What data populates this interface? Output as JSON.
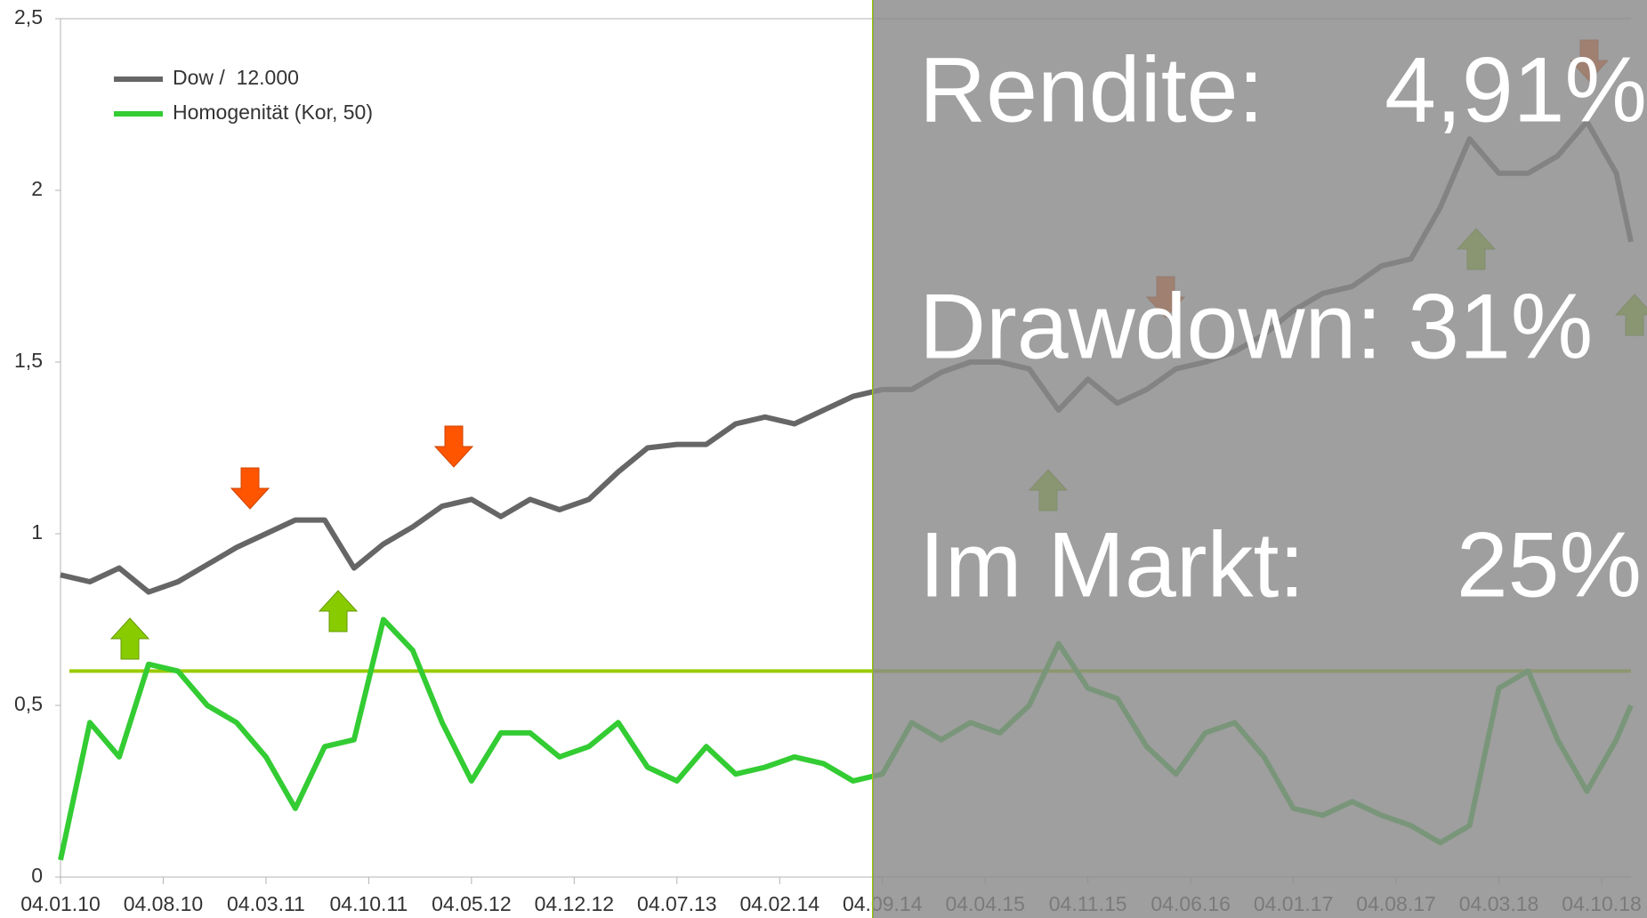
{
  "chart_data": {
    "type": "line",
    "x": [
      "04.01.10",
      "04.03.10",
      "04.05.10",
      "04.07.10",
      "04.09.10",
      "04.11.10",
      "04.01.11",
      "04.03.11",
      "04.05.11",
      "04.07.11",
      "04.09.11",
      "04.11.11",
      "04.01.12",
      "04.03.12",
      "04.05.12",
      "04.07.12",
      "04.09.12",
      "04.11.12",
      "04.01.13",
      "04.03.13",
      "04.05.13",
      "04.07.13",
      "04.09.13",
      "04.11.13",
      "04.01.14",
      "04.03.14",
      "04.05.14",
      "04.07.14",
      "04.09.14",
      "04.11.14",
      "04.01.15",
      "04.03.15",
      "04.05.15",
      "04.07.15",
      "04.09.15",
      "04.11.15",
      "04.01.16",
      "04.03.16",
      "04.05.16",
      "04.07.16",
      "04.09.16",
      "04.11.16",
      "04.01.17",
      "04.03.17",
      "04.05.17",
      "04.07.17",
      "04.09.17",
      "04.11.17",
      "04.01.18",
      "04.03.18",
      "04.05.18",
      "04.07.18",
      "04.09.18",
      "04.11.18",
      "04.12.18"
    ],
    "series": [
      {
        "name": "Dow /  12.000",
        "color": "#666666",
        "values": [
          0.88,
          0.86,
          0.9,
          0.83,
          0.86,
          0.91,
          0.96,
          1.0,
          1.04,
          1.04,
          0.9,
          0.97,
          1.02,
          1.08,
          1.1,
          1.05,
          1.1,
          1.07,
          1.1,
          1.18,
          1.25,
          1.26,
          1.26,
          1.32,
          1.34,
          1.32,
          1.36,
          1.4,
          1.42,
          1.42,
          1.47,
          1.5,
          1.5,
          1.48,
          1.36,
          1.45,
          1.38,
          1.42,
          1.48,
          1.5,
          1.53,
          1.58,
          1.65,
          1.7,
          1.72,
          1.78,
          1.8,
          1.95,
          2.15,
          2.05,
          2.05,
          2.1,
          2.2,
          2.05,
          1.85
        ]
      },
      {
        "name": "Homogenität (Kor, 50)",
        "color": "#33cc33",
        "values": [
          0.05,
          0.45,
          0.35,
          0.62,
          0.6,
          0.5,
          0.45,
          0.35,
          0.2,
          0.38,
          0.4,
          0.75,
          0.66,
          0.45,
          0.28,
          0.42,
          0.42,
          0.35,
          0.38,
          0.45,
          0.32,
          0.28,
          0.38,
          0.3,
          0.32,
          0.35,
          0.33,
          0.28,
          0.3,
          0.45,
          0.4,
          0.45,
          0.42,
          0.5,
          0.68,
          0.55,
          0.52,
          0.38,
          0.3,
          0.42,
          0.45,
          0.35,
          0.2,
          0.18,
          0.22,
          0.18,
          0.15,
          0.1,
          0.15,
          0.55,
          0.6,
          0.4,
          0.25,
          0.4,
          0.5
        ]
      }
    ],
    "threshold": {
      "value": 0.6,
      "color": "#99cc00"
    },
    "xlim": [
      "04.01.10",
      "04.12.18"
    ],
    "xticks": [
      "04.01.10",
      "04.08.10",
      "04.03.11",
      "04.10.11",
      "04.05.12",
      "04.12.12",
      "04.07.13",
      "04.02.14",
      "04.09.14",
      "04.04.15",
      "04.11.15",
      "04.06.16",
      "04.01.17",
      "04.08.17",
      "04.03.18",
      "04.10.18"
    ],
    "ylim": [
      0,
      2.5
    ],
    "yticks": [
      0,
      {
        "value": 0.5,
        "label": "0,5"
      },
      1,
      {
        "value": 1.5,
        "label": "1,5"
      },
      2,
      {
        "value": 2.5,
        "label": "2,5"
      }
    ],
    "legend": "top-left",
    "annotations": {
      "rendite_label": "Rendite:",
      "rendite_value": "4,91%",
      "drawdown": "Drawdown: 31%",
      "markt_label": "Im Markt:",
      "markt_value": "25%"
    }
  }
}
